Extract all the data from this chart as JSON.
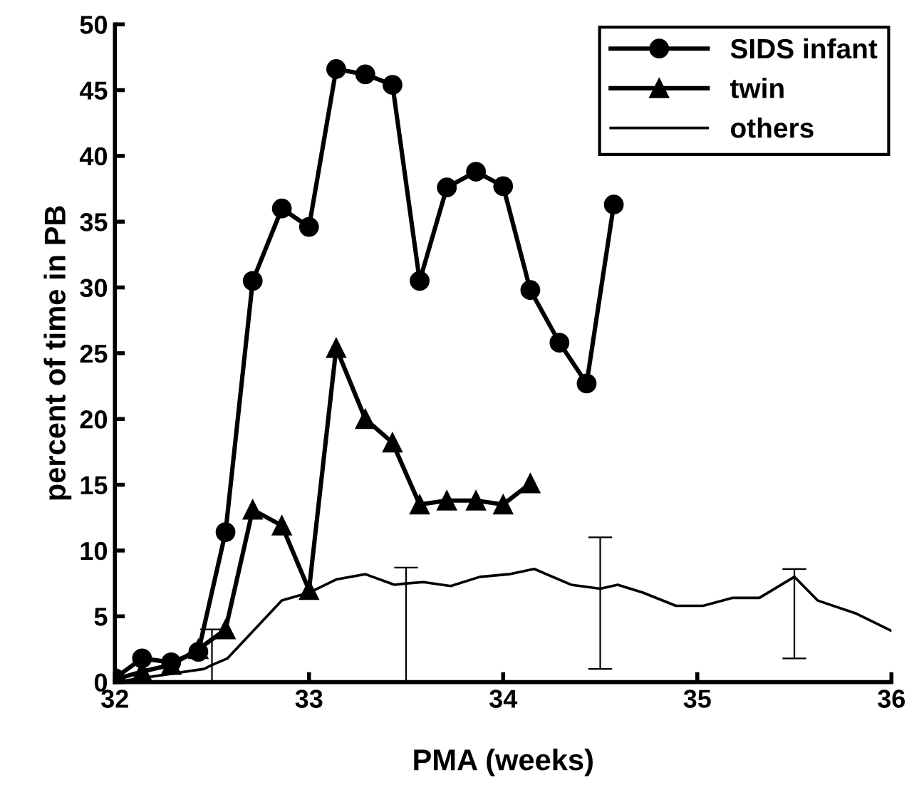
{
  "chart_data": {
    "type": "line",
    "xlabel": "PMA (weeks)",
    "ylabel": "percent of time in PB",
    "xlim": [
      32,
      36
    ],
    "ylim": [
      0,
      50
    ],
    "xticks": [
      32,
      33,
      34,
      35,
      36
    ],
    "yticks": [
      0,
      5,
      10,
      15,
      20,
      25,
      30,
      35,
      40,
      45,
      50
    ],
    "grid": false,
    "legend": "top right",
    "series": [
      {
        "name": "SIDS infant",
        "color": "#000000",
        "marker": "circle",
        "x": [
          32.0,
          32.14,
          32.29,
          32.43,
          32.57,
          32.71,
          32.86,
          33.0,
          33.14,
          33.29,
          33.43,
          33.57,
          33.71,
          33.86,
          34.0,
          34.14,
          34.29,
          34.43,
          34.57
        ],
        "values": [
          0.3,
          1.8,
          1.5,
          2.3,
          11.4,
          30.5,
          36.0,
          34.6,
          46.6,
          46.2,
          45.4,
          30.5,
          37.6,
          38.8,
          37.7,
          29.8,
          25.8,
          22.7,
          36.3
        ]
      },
      {
        "name": "twin",
        "color": "#000000",
        "marker": "triangle",
        "x": [
          32.0,
          32.14,
          32.29,
          32.43,
          32.57,
          32.71,
          32.86,
          33.0,
          33.14,
          33.29,
          33.43,
          33.57,
          33.71,
          33.86,
          34.0,
          34.14
        ],
        "values": [
          0.2,
          0.8,
          1.3,
          2.5,
          4.0,
          13.1,
          11.9,
          7.0,
          25.4,
          20.0,
          18.2,
          13.5,
          13.8,
          13.8,
          13.5,
          15.1
        ]
      },
      {
        "name": "others",
        "color": "#000000",
        "marker": "none",
        "x": [
          32.0,
          32.46,
          32.5,
          32.58,
          32.86,
          33.0,
          33.14,
          33.29,
          33.44,
          33.5,
          33.59,
          33.73,
          33.88,
          34.03,
          34.16,
          34.35,
          34.5,
          34.59,
          34.72,
          34.89,
          35.03,
          35.18,
          35.32,
          35.5,
          35.62,
          35.82,
          36.0
        ],
        "values": [
          0.0,
          1.0,
          1.3,
          1.8,
          6.2,
          6.8,
          7.8,
          8.2,
          7.4,
          7.5,
          7.6,
          7.3,
          8.0,
          8.2,
          8.6,
          7.4,
          7.1,
          7.4,
          6.8,
          5.8,
          5.8,
          6.4,
          6.4,
          8.0,
          6.2,
          5.2,
          3.9
        ],
        "errors": [
          null,
          null,
          [
            0,
            4
          ],
          null,
          null,
          null,
          null,
          null,
          null,
          [
            0,
            8.7
          ],
          null,
          null,
          null,
          null,
          null,
          null,
          [
            1,
            11
          ],
          null,
          null,
          null,
          null,
          null,
          null,
          [
            1.8,
            8.6
          ],
          null,
          null,
          null
        ]
      }
    ]
  }
}
